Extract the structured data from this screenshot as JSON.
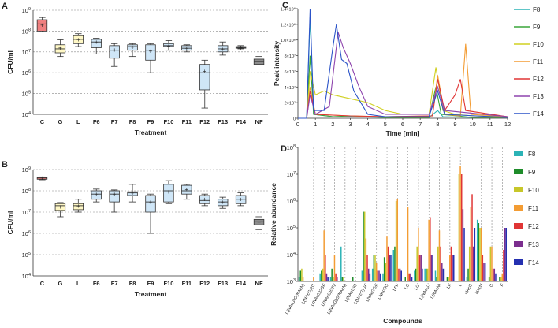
{
  "chart_data": [
    {
      "panel": "A",
      "type": "box",
      "ylabel": "CFU/ml",
      "xlabel": "Treatment",
      "yscale": "log",
      "ylim": [
        10000,
        1000000000
      ],
      "yticks": [
        "10^4",
        "10^5",
        "10^6",
        "10^7",
        "10^8",
        "10^9"
      ],
      "categories": [
        "C",
        "G",
        "L",
        "F6",
        "F7",
        "F8",
        "F9",
        "F10",
        "F11",
        "F12",
        "F13",
        "F14",
        "NF"
      ],
      "fill_colors": [
        "#f08080",
        "#fff8c6",
        "#fff8c6",
        "#cfe6f7",
        "#cfe6f7",
        "#cfe6f7",
        "#cfe6f7",
        "#cfe6f7",
        "#cfe6f7",
        "#cfe6f7",
        "#cfe6f7",
        "#cfe6f7",
        "#8c8c8c"
      ],
      "boxes": [
        {
          "min": 90000000,
          "q1": 100000000,
          "median": 220000000,
          "q3": 350000000,
          "max": 450000000,
          "mean": 200000000
        },
        {
          "min": 6000000,
          "q1": 9000000,
          "median": 14000000,
          "q3": 22000000,
          "max": 38000000,
          "mean": 16000000
        },
        {
          "min": 18000000,
          "q1": 25000000,
          "median": 40000000,
          "q3": 60000000,
          "max": 75000000,
          "mean": 40000000
        },
        {
          "min": 8000000,
          "q1": 16000000,
          "median": 30000000,
          "q3": 40000000,
          "max": 45000000,
          "mean": 30000000
        },
        {
          "min": 2000000,
          "q1": 5000000,
          "median": 12000000,
          "q3": 20000000,
          "max": 25000000,
          "mean": 13000000
        },
        {
          "min": 6000000,
          "q1": 12000000,
          "median": 18000000,
          "q3": 22000000,
          "max": 25000000,
          "mean": 17000000
        },
        {
          "min": 1000000,
          "q1": 4000000,
          "median": 12000000,
          "q3": 22000000,
          "max": 25000000,
          "mean": 11000000
        },
        {
          "min": 12000000,
          "q1": 18000000,
          "median": 20000000,
          "q3": 25000000,
          "max": 35000000,
          "mean": 20000000
        },
        {
          "min": 10000000,
          "q1": 12000000,
          "median": 15000000,
          "q3": 20000000,
          "max": 22000000,
          "mean": 15000000
        },
        {
          "min": 20000,
          "q1": 150000,
          "median": 1000000,
          "q3": 2500000,
          "max": 4000000,
          "mean": 1200000
        },
        {
          "min": 7000000,
          "q1": 10000000,
          "median": 14000000,
          "q3": 20000000,
          "max": 30000000,
          "mean": 14000000
        },
        {
          "min": 14000000,
          "q1": 15000000,
          "median": 16000000,
          "q3": 18000000,
          "max": 20000000,
          "mean": 16000000
        },
        {
          "min": 1500000,
          "q1": 2500000,
          "median": 3500000,
          "q3": 4500000,
          "max": 6000000,
          "mean": 3500000
        }
      ]
    },
    {
      "panel": "B",
      "type": "box",
      "ylabel": "CFU/ml",
      "xlabel": "Treatment",
      "yscale": "log",
      "ylim": [
        10000,
        1000000000
      ],
      "yticks": [
        "10^4",
        "10^5",
        "10^6",
        "10^7",
        "10^8",
        "10^9"
      ],
      "categories": [
        "C",
        "G",
        "L",
        "F6",
        "F7",
        "F8",
        "F9",
        "F10",
        "F11",
        "F12",
        "F13",
        "F14",
        "NF"
      ],
      "fill_colors": [
        "#f08080",
        "#fff8c6",
        "#fff8c6",
        "#cfe6f7",
        "#cfe6f7",
        "#cfe6f7",
        "#cfe6f7",
        "#cfe6f7",
        "#cfe6f7",
        "#cfe6f7",
        "#cfe6f7",
        "#cfe6f7",
        "#8c8c8c"
      ],
      "boxes": [
        {
          "min": 330000000,
          "q1": 350000000,
          "median": 400000000,
          "q3": 430000000,
          "max": 450000000,
          "mean": 400000000
        },
        {
          "min": 6000000,
          "q1": 12000000,
          "median": 20000000,
          "q3": 25000000,
          "max": 28000000,
          "mean": 18000000
        },
        {
          "min": 10000000,
          "q1": 13000000,
          "median": 20000000,
          "q3": 25000000,
          "max": 40000000,
          "mean": 20000000
        },
        {
          "min": 30000000,
          "q1": 40000000,
          "median": 70000000,
          "q3": 100000000,
          "max": 120000000,
          "mean": 70000000
        },
        {
          "min": 10000000,
          "q1": 30000000,
          "median": 70000000,
          "q3": 100000000,
          "max": 110000000,
          "mean": 70000000
        },
        {
          "min": 30000000,
          "q1": 60000000,
          "median": 80000000,
          "q3": 90000000,
          "max": 200000000,
          "mean": 80000000
        },
        {
          "min": 1000000,
          "q1": 10000000,
          "median": 30000000,
          "q3": 60000000,
          "max": 70000000,
          "mean": 30000000
        },
        {
          "min": 25000000,
          "q1": 30000000,
          "median": 100000000,
          "q3": 200000000,
          "max": 300000000,
          "mean": 90000000
        },
        {
          "min": 40000000,
          "q1": 70000000,
          "median": 100000000,
          "q3": 180000000,
          "max": 200000000,
          "mean": 120000000
        },
        {
          "min": 20000000,
          "q1": 25000000,
          "median": 35000000,
          "q3": 60000000,
          "max": 70000000,
          "mean": 40000000
        },
        {
          "min": 15000000,
          "q1": 20000000,
          "median": 30000000,
          "q3": 40000000,
          "max": 50000000,
          "mean": 30000000
        },
        {
          "min": 20000000,
          "q1": 25000000,
          "median": 40000000,
          "q3": 60000000,
          "max": 80000000,
          "mean": 40000000
        },
        {
          "min": 1500000,
          "q1": 2500000,
          "median": 3500000,
          "q3": 4500000,
          "max": 6000000,
          "mean": 3500000
        }
      ]
    },
    {
      "panel": "C",
      "type": "line",
      "xlabel": "Time [min]",
      "ylabel": "Peak intensity",
      "xlim": [
        0,
        12
      ],
      "ylim": [
        0,
        140000000
      ],
      "xticks": [
        "0",
        "1",
        "2",
        "3",
        "4",
        "5",
        "6",
        "7",
        "8",
        "9",
        "10",
        "11",
        "12"
      ],
      "yticks": [
        "0",
        "2×10⁷",
        "4×10⁷",
        "6×10⁷",
        "8×10⁷",
        "1.0×10⁸",
        "1.2×10⁸",
        "1.4×10⁸"
      ],
      "series": [
        {
          "name": "F8",
          "color": "#2bb3b6",
          "points": [
            [
              0,
              0
            ],
            [
              0.5,
              0
            ],
            [
              0.7,
              130000000
            ],
            [
              0.9,
              5000000
            ],
            [
              2,
              2000000
            ],
            [
              3,
              2000000
            ],
            [
              5,
              1000000
            ],
            [
              7.5,
              1000000
            ],
            [
              8,
              10000000
            ],
            [
              8.3,
              2000000
            ],
            [
              10,
              1000000
            ],
            [
              12,
              1000000
            ]
          ]
        },
        {
          "name": "F9",
          "color": "#3aa53a",
          "points": [
            [
              0,
              0
            ],
            [
              0.5,
              0
            ],
            [
              0.7,
              80000000
            ],
            [
              0.9,
              5000000
            ],
            [
              2,
              2000000
            ],
            [
              3,
              3000000
            ],
            [
              5,
              1000000
            ],
            [
              7.5,
              1000000
            ],
            [
              7.9,
              40000000
            ],
            [
              8.2,
              5000000
            ],
            [
              10,
              1000000
            ],
            [
              12,
              1000000
            ]
          ]
        },
        {
          "name": "F10",
          "color": "#d0d020",
          "points": [
            [
              0,
              0
            ],
            [
              0.5,
              0
            ],
            [
              0.7,
              60000000
            ],
            [
              1,
              30000000
            ],
            [
              1.5,
              35000000
            ],
            [
              2,
              30000000
            ],
            [
              3,
              25000000
            ],
            [
              4,
              20000000
            ],
            [
              5,
              10000000
            ],
            [
              6,
              5000000
            ],
            [
              7.5,
              5000000
            ],
            [
              7.9,
              65000000
            ],
            [
              8.3,
              10000000
            ],
            [
              9,
              5000000
            ],
            [
              10,
              3000000
            ],
            [
              12,
              2000000
            ]
          ]
        },
        {
          "name": "F11",
          "color": "#f39c33",
          "points": [
            [
              0,
              0
            ],
            [
              0.5,
              0
            ],
            [
              0.7,
              40000000
            ],
            [
              1,
              5000000
            ],
            [
              3,
              3000000
            ],
            [
              5,
              2000000
            ],
            [
              7.7,
              3000000
            ],
            [
              8,
              55000000
            ],
            [
              8.4,
              5000000
            ],
            [
              9.3,
              3000000
            ],
            [
              9.6,
              95000000
            ],
            [
              9.9,
              5000000
            ],
            [
              12,
              2000000
            ]
          ]
        },
        {
          "name": "F12",
          "color": "#e03535",
          "points": [
            [
              0,
              0
            ],
            [
              0.5,
              0
            ],
            [
              0.7,
              35000000
            ],
            [
              1,
              5000000
            ],
            [
              3,
              3000000
            ],
            [
              5,
              2000000
            ],
            [
              7.7,
              3000000
            ],
            [
              8,
              50000000
            ],
            [
              8.4,
              10000000
            ],
            [
              9,
              30000000
            ],
            [
              9.3,
              50000000
            ],
            [
              9.6,
              10000000
            ],
            [
              12,
              2000000
            ]
          ]
        },
        {
          "name": "F13",
          "color": "#8e44ad",
          "points": [
            [
              0,
              0
            ],
            [
              0.5,
              0
            ],
            [
              0.7,
              30000000
            ],
            [
              1,
              5000000
            ],
            [
              1.8,
              15000000
            ],
            [
              2.3,
              110000000
            ],
            [
              2.6,
              90000000
            ],
            [
              3,
              70000000
            ],
            [
              3.5,
              40000000
            ],
            [
              4,
              15000000
            ],
            [
              5,
              5000000
            ],
            [
              7.5,
              5000000
            ],
            [
              8,
              40000000
            ],
            [
              8.4,
              10000000
            ],
            [
              12,
              2000000
            ]
          ]
        },
        {
          "name": "F14",
          "color": "#2c54c8",
          "points": [
            [
              0,
              0
            ],
            [
              0.5,
              0
            ],
            [
              0.7,
              140000000
            ],
            [
              0.9,
              10000000
            ],
            [
              1.5,
              10000000
            ],
            [
              2,
              90000000
            ],
            [
              2.2,
              120000000
            ],
            [
              2.5,
              75000000
            ],
            [
              2.8,
              70000000
            ],
            [
              3.2,
              35000000
            ],
            [
              4,
              5000000
            ],
            [
              5,
              2000000
            ],
            [
              7.5,
              2000000
            ],
            [
              8,
              35000000
            ],
            [
              8.4,
              5000000
            ],
            [
              12,
              1000000
            ]
          ]
        }
      ]
    },
    {
      "panel": "D",
      "type": "bar",
      "yscale": "log",
      "xlabel": "Compounds",
      "ylabel": "Relative abundance",
      "ylim": [
        1000,
        100000000
      ],
      "yticks": [
        "10^3",
        "10^4",
        "10^5",
        "10^6",
        "10^7",
        "10^8"
      ],
      "categories": [
        "L(NAcG)G(NAcN)",
        "L(NAcG)2G",
        "L(NAcG)2GF",
        "L(NAcG)GF2",
        "L(NAcG)G(NAcN)",
        "L(NAcG)G",
        "L(NAcG)GF",
        "LNAcGGF",
        "LNAcGG",
        "LFF",
        "LG",
        "LG'",
        "L(NAcG)'",
        "L(NAcN)",
        "LF",
        "L",
        "NAcG",
        "NAcN",
        "G",
        "F"
      ],
      "series": [
        {
          "name": "F8",
          "color": "#2bb3b6",
          "values": [
            1500,
            1000,
            2000,
            1500,
            20000,
            1000,
            2500,
            3000,
            2000,
            15000,
            1000,
            2500,
            3000,
            2500,
            1000,
            1000,
            1500,
            200000,
            1000,
            1000
          ]
        },
        {
          "name": "F9",
          "color": "#1e8c2a",
          "values": [
            2500,
            1000,
            2500,
            3000,
            1500,
            1500,
            400000,
            10000,
            8000,
            20000,
            1500,
            3000,
            3000,
            1500,
            1500,
            1000,
            3000,
            150000,
            1500,
            1500
          ]
        },
        {
          "name": "F10",
          "color": "#c7c72a",
          "values": [
            3000,
            1000,
            3000,
            1500,
            1500,
            1000,
            400000,
            10000,
            5000,
            1000000,
            1000,
            20000,
            3000,
            20000,
            1500,
            10000000,
            20000,
            100000,
            20000,
            1500
          ]
        },
        {
          "name": "F11",
          "color": "#f39c33",
          "values": [
            1500,
            1500,
            80000,
            10000,
            1000,
            1000,
            40000,
            5000,
            50000,
            1200000,
            600000,
            100000,
            200000,
            80000,
            10000,
            20000000,
            600000,
            100000,
            20000,
            2000
          ]
        },
        {
          "name": "F12",
          "color": "#e03535",
          "values": [
            1000,
            1000,
            10000,
            2000,
            1000,
            1000,
            10000,
            2500,
            20000,
            3000,
            2000,
            10000,
            250000,
            20000,
            20000,
            10000000,
            1800000,
            10000,
            3000,
            15000
          ]
        },
        {
          "name": "F13",
          "color": "#7b2d8e",
          "values": [
            1000,
            1000,
            2000,
            1500,
            1000,
            1000,
            3000,
            2500,
            10000,
            3000,
            2000,
            10000,
            10000,
            5000,
            10000,
            500000,
            20000,
            5000,
            3000,
            100000
          ]
        },
        {
          "name": "F14",
          "color": "#2430b0",
          "values": [
            1000,
            1000,
            1500,
            1000,
            1000,
            1000,
            2000,
            2000,
            10000,
            2500,
            1500,
            3000,
            10000,
            3000,
            10000,
            100000,
            100000,
            5000,
            2000,
            100000
          ]
        }
      ]
    }
  ]
}
